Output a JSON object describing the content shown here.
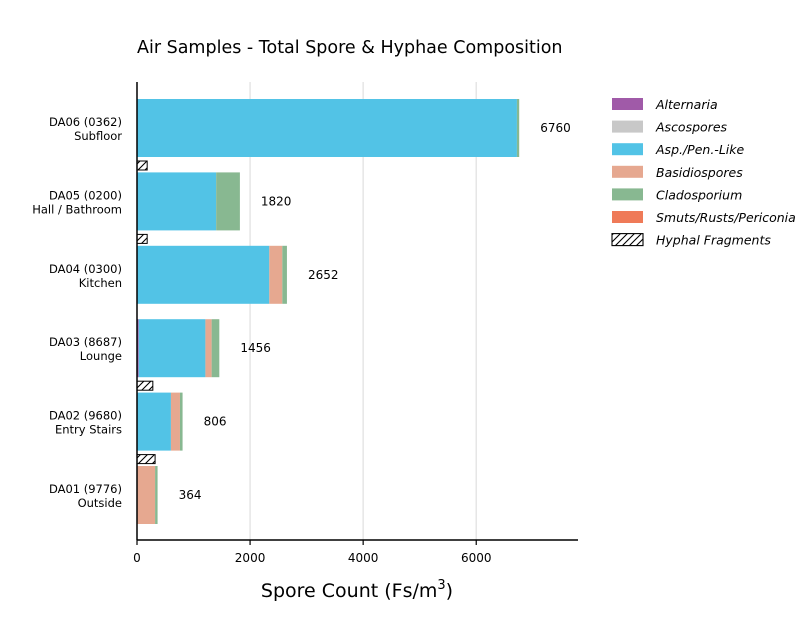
{
  "chart_data": {
    "type": "bar",
    "orientation": "horizontal",
    "stacked": true,
    "title": "Air Samples - Total Spore & Hyphae Composition",
    "xlabel": "Spore Count (Fs/m",
    "xlabel_superscript": "3",
    "xlabel_suffix": ")",
    "xlim": [
      0,
      7800
    ],
    "xticks": [
      0,
      2000,
      4000,
      6000
    ],
    "xtick_labels": [
      "0",
      "2000",
      "4000",
      "6000"
    ],
    "grid": "vertical",
    "legend_position": "right",
    "categories": [
      {
        "line1": "DA06 (0362)",
        "line2": "Subfloor"
      },
      {
        "line1": "DA05 (0200)",
        "line2": "Hall / Bathroom"
      },
      {
        "line1": "DA04 (0300)",
        "line2": "Kitchen"
      },
      {
        "line1": "DA03 (8687)",
        "line2": "Lounge"
      },
      {
        "line1": "DA02 (9680)",
        "line2": "Entry Stairs"
      },
      {
        "line1": "DA01 (9776)",
        "line2": "Outside"
      }
    ],
    "totals": [
      "6760",
      "1820",
      "2652",
      "1456",
      "806",
      "364"
    ],
    "series": [
      {
        "name": "Alternaria",
        "color": "#a05aa8",
        "values": [
          0,
          0,
          0,
          30,
          0,
          0
        ]
      },
      {
        "name": "Ascospores",
        "color": "#c8c8c8",
        "values": [
          0,
          0,
          0,
          0,
          0,
          0
        ]
      },
      {
        "name": "Asp./Pen.-Like",
        "color": "#52c3e6",
        "values": [
          6720,
          1400,
          2340,
          1180,
          600,
          0
        ]
      },
      {
        "name": "Basidiospores",
        "color": "#e6a890",
        "values": [
          0,
          0,
          230,
          110,
          160,
          320
        ]
      },
      {
        "name": "Cladosporium",
        "color": "#88b891",
        "values": [
          40,
          420,
          82,
          136,
          46,
          44
        ]
      },
      {
        "name": "Smuts/Rusts/Periconia",
        "color": "#ef7a58",
        "values": [
          0,
          0,
          0,
          0,
          0,
          0
        ]
      }
    ],
    "hyphal_fragments": {
      "name": "Hyphal Fragments",
      "pattern": "hatched",
      "values": [
        180,
        180,
        0,
        280,
        320,
        0
      ]
    }
  }
}
